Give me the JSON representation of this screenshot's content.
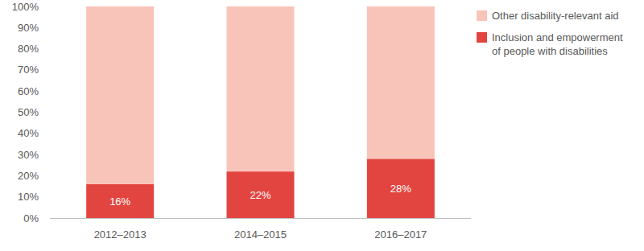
{
  "chart_data": {
    "type": "bar",
    "stacked": true,
    "legend": "right",
    "grid": false,
    "categories": [
      "2012–2013",
      "2014–2015",
      "2016–2017"
    ],
    "series": [
      {
        "name": "Inclusion and empowerment of people with disabilities",
        "color": "#e2453f",
        "values": [
          16,
          22,
          28
        ],
        "value_labels": [
          "16%",
          "22%",
          "28%"
        ],
        "data_labels": true
      },
      {
        "name": "Other disability-relevant aid",
        "color": "#f8c3b8",
        "values": [
          84,
          78,
          72
        ]
      }
    ],
    "ylim": [
      0,
      100
    ],
    "yticks": [
      {
        "value": 0,
        "label": "0%"
      },
      {
        "value": 10,
        "label": "10%"
      },
      {
        "value": 20,
        "label": "20%"
      },
      {
        "value": 30,
        "label": "30%"
      },
      {
        "value": 40,
        "label": "40%"
      },
      {
        "value": 50,
        "label": "50%"
      },
      {
        "value": 60,
        "label": "60%"
      },
      {
        "value": 70,
        "label": "70%"
      },
      {
        "value": 80,
        "label": "80%"
      },
      {
        "value": 90,
        "label": "90%"
      },
      {
        "value": 100,
        "label": "100%"
      }
    ]
  }
}
